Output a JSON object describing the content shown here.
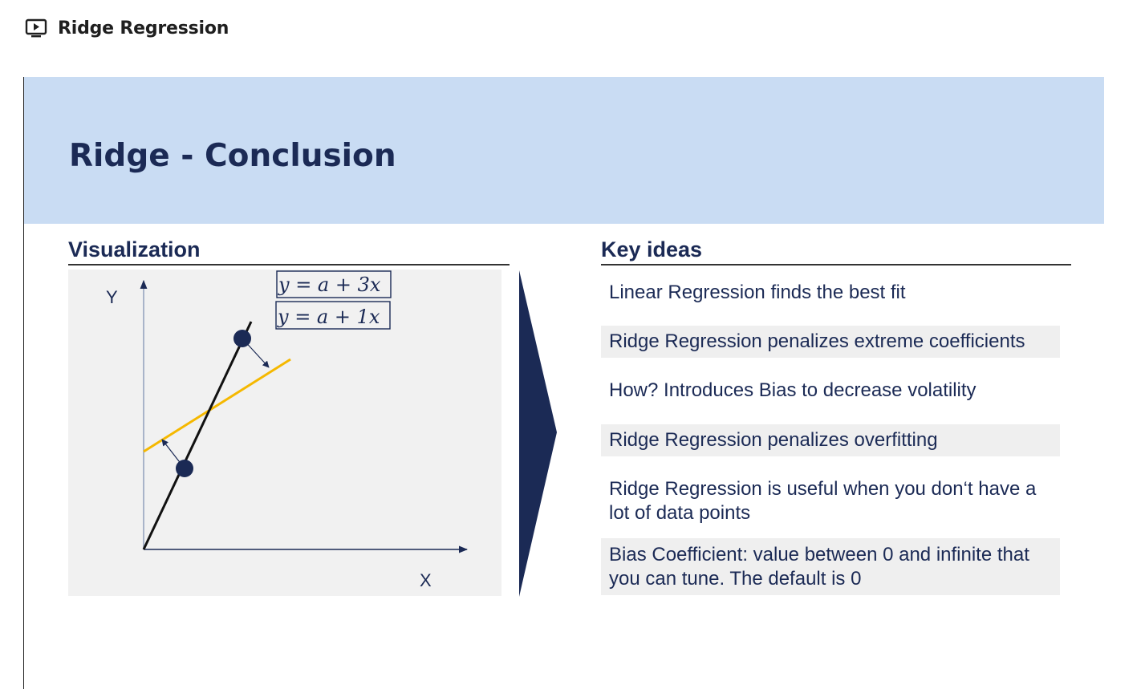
{
  "app": {
    "title": "Ridge Regression",
    "icon": "video-icon"
  },
  "slide": {
    "title": "Ridge - Conclusion",
    "header_color": "#c9dcf3",
    "title_color": "#1b2a55",
    "visualization": {
      "heading": "Visualization",
      "y_label": "Y",
      "x_label": "X",
      "equations": [
        "y = a + 3x",
        "y = a + 1x"
      ],
      "steep_line_color": "#111111",
      "ridge_line_color": "#f5b800",
      "point_color": "#1b2a55"
    },
    "key_ideas": {
      "heading": "Key ideas",
      "items": [
        {
          "text": "Linear Regression finds the best fit",
          "shaded": false
        },
        {
          "text": "Ridge Regression penalizes extreme coefficients",
          "shaded": true
        },
        {
          "text": "How? Introduces Bias to decrease volatility",
          "shaded": false
        },
        {
          "text": "Ridge Regression penalizes overfitting",
          "shaded": true
        },
        {
          "text": "Ridge Regression is useful when you don‘t have a lot of data points",
          "shaded": false
        },
        {
          "text": "Bias Coefficient: value between 0 and infinite that you can tune. The default is 0",
          "shaded": true
        }
      ]
    }
  }
}
